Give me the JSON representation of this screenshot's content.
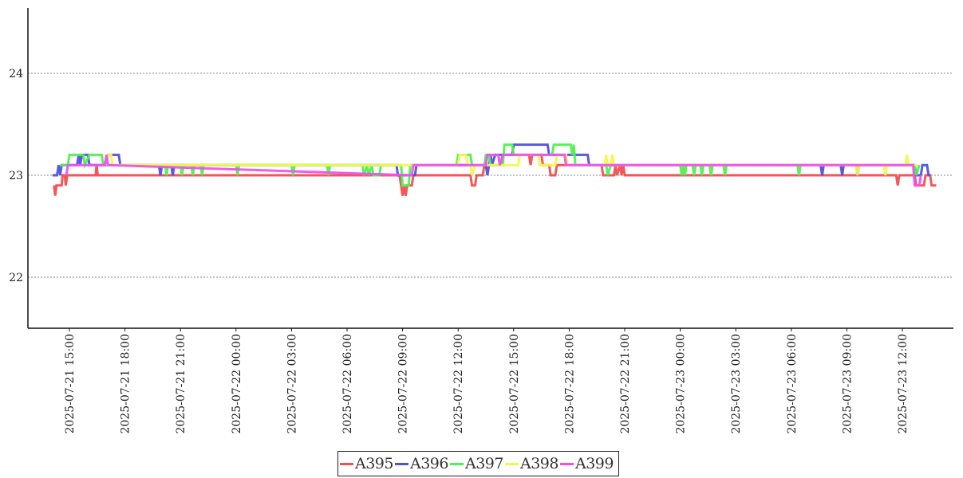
{
  "chart_data": {
    "type": "line",
    "title": "",
    "xlabel": "",
    "ylabel": "",
    "ylim": [
      21.5,
      24.6
    ],
    "y_ticks": [
      22,
      23,
      24
    ],
    "grid": "horizontal dotted",
    "legend_position": "bottom-center",
    "x_ticks": [
      "2025-07-21 15:00",
      "2025-07-21 18:00",
      "2025-07-21 21:00",
      "2025-07-22 00:00",
      "2025-07-22 03:00",
      "2025-07-22 06:00",
      "2025-07-22 09:00",
      "2025-07-22 12:00",
      "2025-07-22 15:00",
      "2025-07-22 18:00",
      "2025-07-22 21:00",
      "2025-07-23 00:00",
      "2025-07-23 03:00",
      "2025-07-23 06:00",
      "2025-07-23 09:00",
      "2025-07-23 12:00"
    ],
    "series": [
      {
        "name": "A395",
        "color": "#f05050",
        "points": [
          [
            "2025-07-21 14:10",
            22.9
          ],
          [
            "2025-07-21 14:14",
            22.8
          ],
          [
            "2025-07-21 14:18",
            22.9
          ],
          [
            "2025-07-21 14:35",
            22.9
          ],
          [
            "2025-07-21 14:38",
            23.0
          ],
          [
            "2025-07-21 14:45",
            23.0
          ],
          [
            "2025-07-21 14:48",
            22.9
          ],
          [
            "2025-07-21 14:53",
            23.0
          ],
          [
            "2025-07-21 16:25",
            23.0
          ],
          [
            "2025-07-21 16:28",
            23.1
          ],
          [
            "2025-07-21 16:32",
            23.0
          ],
          [
            "2025-07-22 08:50",
            23.0
          ],
          [
            "2025-07-22 08:55",
            22.9
          ],
          [
            "2025-07-22 09:00",
            22.8
          ],
          [
            "2025-07-22 09:05",
            22.9
          ],
          [
            "2025-07-22 09:10",
            22.8
          ],
          [
            "2025-07-22 09:15",
            22.9
          ],
          [
            "2025-07-22 09:30",
            22.9
          ],
          [
            "2025-07-22 09:35",
            23.0
          ],
          [
            "2025-07-22 12:40",
            23.0
          ],
          [
            "2025-07-22 12:45",
            22.9
          ],
          [
            "2025-07-22 12:55",
            22.9
          ],
          [
            "2025-07-22 13:00",
            23.0
          ],
          [
            "2025-07-22 13:20",
            23.0
          ],
          [
            "2025-07-22 13:25",
            23.1
          ],
          [
            "2025-07-22 14:20",
            23.1
          ],
          [
            "2025-07-22 14:25",
            23.2
          ],
          [
            "2025-07-22 15:50",
            23.2
          ],
          [
            "2025-07-22 15:55",
            23.1
          ],
          [
            "2025-07-22 16:00",
            23.2
          ],
          [
            "2025-07-22 16:30",
            23.2
          ],
          [
            "2025-07-22 16:35",
            23.1
          ],
          [
            "2025-07-22 16:55",
            23.1
          ],
          [
            "2025-07-22 17:00",
            23.0
          ],
          [
            "2025-07-22 17:15",
            23.0
          ],
          [
            "2025-07-22 17:20",
            23.1
          ],
          [
            "2025-07-22 19:45",
            23.1
          ],
          [
            "2025-07-22 19:50",
            23.0
          ],
          [
            "2025-07-22 20:25",
            23.0
          ],
          [
            "2025-07-22 20:30",
            23.1
          ],
          [
            "2025-07-22 20:35",
            23.0
          ],
          [
            "2025-07-22 20:45",
            23.1
          ],
          [
            "2025-07-22 20:50",
            23.0
          ],
          [
            "2025-07-22 20:55",
            23.1
          ],
          [
            "2025-07-22 21:00",
            23.0
          ],
          [
            "2025-07-23 11:40",
            23.0
          ],
          [
            "2025-07-23 11:45",
            22.9
          ],
          [
            "2025-07-23 11:50",
            23.0
          ],
          [
            "2025-07-23 12:40",
            23.0
          ],
          [
            "2025-07-23 12:45",
            22.9
          ],
          [
            "2025-07-23 13:10",
            22.9
          ],
          [
            "2025-07-23 13:15",
            23.0
          ],
          [
            "2025-07-23 13:30",
            23.0
          ],
          [
            "2025-07-23 13:35",
            22.9
          ],
          [
            "2025-07-23 13:50",
            22.9
          ]
        ]
      },
      {
        "name": "A396",
        "color": "#5050e0",
        "points": [
          [
            "2025-07-21 14:05",
            23.0
          ],
          [
            "2025-07-21 14:20",
            23.0
          ],
          [
            "2025-07-21 14:25",
            23.1
          ],
          [
            "2025-07-21 14:30",
            23.0
          ],
          [
            "2025-07-21 14:35",
            23.1
          ],
          [
            "2025-07-21 15:25",
            23.1
          ],
          [
            "2025-07-21 15:30",
            23.2
          ],
          [
            "2025-07-21 15:35",
            23.1
          ],
          [
            "2025-07-21 15:40",
            23.2
          ],
          [
            "2025-07-21 16:00",
            23.2
          ],
          [
            "2025-07-21 16:05",
            23.1
          ],
          [
            "2025-07-21 17:00",
            23.1
          ],
          [
            "2025-07-21 17:05",
            23.2
          ],
          [
            "2025-07-21 17:40",
            23.2
          ],
          [
            "2025-07-21 17:45",
            23.1
          ],
          [
            "2025-07-21 19:50",
            23.1
          ],
          [
            "2025-07-21 19:55",
            23.0
          ],
          [
            "2025-07-21 20:00",
            23.1
          ],
          [
            "2025-07-21 20:30",
            23.1
          ],
          [
            "2025-07-21 20:35",
            23.0
          ],
          [
            "2025-07-21 20:40",
            23.1
          ],
          [
            "2025-07-22 08:40",
            23.1
          ],
          [
            "2025-07-22 08:45",
            23.0
          ],
          [
            "2025-07-22 09:40",
            23.0
          ],
          [
            "2025-07-22 09:45",
            23.1
          ],
          [
            "2025-07-22 13:30",
            23.1
          ],
          [
            "2025-07-22 13:35",
            23.0
          ],
          [
            "2025-07-22 13:40",
            23.1
          ],
          [
            "2025-07-22 13:45",
            23.2
          ],
          [
            "2025-07-22 13:50",
            23.1
          ],
          [
            "2025-07-22 14:00",
            23.2
          ],
          [
            "2025-07-22 14:55",
            23.2
          ],
          [
            "2025-07-22 15:00",
            23.3
          ],
          [
            "2025-07-22 16:50",
            23.3
          ],
          [
            "2025-07-22 16:55",
            23.2
          ],
          [
            "2025-07-22 19:00",
            23.2
          ],
          [
            "2025-07-22 19:05",
            23.1
          ],
          [
            "2025-07-23 07:35",
            23.1
          ],
          [
            "2025-07-23 07:40",
            23.0
          ],
          [
            "2025-07-23 07:45",
            23.1
          ],
          [
            "2025-07-23 08:40",
            23.1
          ],
          [
            "2025-07-23 08:45",
            23.0
          ],
          [
            "2025-07-23 08:50",
            23.1
          ],
          [
            "2025-07-23 09:30",
            23.1
          ],
          [
            "2025-07-23 09:35",
            23.0
          ],
          [
            "2025-07-23 09:40",
            23.1
          ],
          [
            "2025-07-23 12:40",
            23.1
          ],
          [
            "2025-07-23 12:45",
            23.0
          ],
          [
            "2025-07-23 13:00",
            23.0
          ],
          [
            "2025-07-23 13:05",
            23.1
          ],
          [
            "2025-07-23 13:20",
            23.1
          ],
          [
            "2025-07-23 13:25",
            23.0
          ],
          [
            "2025-07-23 13:30",
            23.0
          ]
        ]
      },
      {
        "name": "A397",
        "color": "#50f050",
        "points": [
          [
            "2025-07-21 14:30",
            23.1
          ],
          [
            "2025-07-21 14:55",
            23.1
          ],
          [
            "2025-07-21 15:00",
            23.2
          ],
          [
            "2025-07-21 15:45",
            23.2
          ],
          [
            "2025-07-21 15:50",
            23.1
          ],
          [
            "2025-07-21 16:05",
            23.2
          ],
          [
            "2025-07-21 16:45",
            23.2
          ],
          [
            "2025-07-21 16:50",
            23.1
          ],
          [
            "2025-07-21 20:10",
            23.1
          ],
          [
            "2025-07-21 20:15",
            23.0
          ],
          [
            "2025-07-21 20:20",
            23.1
          ],
          [
            "2025-07-21 21:00",
            23.1
          ],
          [
            "2025-07-21 21:05",
            23.0
          ],
          [
            "2025-07-21 21:10",
            23.1
          ],
          [
            "2025-07-21 21:35",
            23.1
          ],
          [
            "2025-07-21 21:40",
            23.0
          ],
          [
            "2025-07-21 21:45",
            23.1
          ],
          [
            "2025-07-21 22:05",
            23.1
          ],
          [
            "2025-07-21 22:10",
            23.0
          ],
          [
            "2025-07-21 22:15",
            23.1
          ],
          [
            "2025-07-22 00:00",
            23.1
          ],
          [
            "2025-07-22 00:05",
            23.0
          ],
          [
            "2025-07-22 00:10",
            23.1
          ],
          [
            "2025-07-22 03:00",
            23.1
          ],
          [
            "2025-07-22 03:05",
            23.0
          ],
          [
            "2025-07-22 03:10",
            23.1
          ],
          [
            "2025-07-22 04:55",
            23.1
          ],
          [
            "2025-07-22 05:00",
            23.0
          ],
          [
            "2025-07-22 05:05",
            23.1
          ],
          [
            "2025-07-22 06:50",
            23.1
          ],
          [
            "2025-07-22 06:55",
            23.0
          ],
          [
            "2025-07-22 07:05",
            23.1
          ],
          [
            "2025-07-22 07:10",
            23.0
          ],
          [
            "2025-07-22 07:20",
            23.1
          ],
          [
            "2025-07-22 07:25",
            23.0
          ],
          [
            "2025-07-22 07:45",
            23.0
          ],
          [
            "2025-07-22 07:50",
            23.1
          ],
          [
            "2025-07-22 08:55",
            23.1
          ],
          [
            "2025-07-22 09:00",
            22.9
          ],
          [
            "2025-07-22 09:20",
            22.9
          ],
          [
            "2025-07-22 09:25",
            23.1
          ],
          [
            "2025-07-22 11:55",
            23.1
          ],
          [
            "2025-07-22 12:00",
            23.2
          ],
          [
            "2025-07-22 12:40",
            23.2
          ],
          [
            "2025-07-22 12:45",
            23.1
          ],
          [
            "2025-07-22 13:25",
            23.1
          ],
          [
            "2025-07-22 13:30",
            23.2
          ],
          [
            "2025-07-22 13:40",
            23.2
          ],
          [
            "2025-07-22 13:45",
            23.1
          ],
          [
            "2025-07-22 14:25",
            23.1
          ],
          [
            "2025-07-22 14:30",
            23.3
          ],
          [
            "2025-07-22 14:55",
            23.3
          ],
          [
            "2025-07-22 15:00",
            23.2
          ],
          [
            "2025-07-22 17:05",
            23.2
          ],
          [
            "2025-07-22 17:10",
            23.3
          ],
          [
            "2025-07-22 18:05",
            23.3
          ],
          [
            "2025-07-22 18:10",
            23.2
          ],
          [
            "2025-07-22 18:15",
            23.3
          ],
          [
            "2025-07-22 18:20",
            23.1
          ],
          [
            "2025-07-22 20:00",
            23.1
          ],
          [
            "2025-07-22 20:05",
            23.0
          ],
          [
            "2025-07-22 20:15",
            23.1
          ],
          [
            "2025-07-23 00:00",
            23.1
          ],
          [
            "2025-07-23 00:05",
            23.0
          ],
          [
            "2025-07-23 00:10",
            23.1
          ],
          [
            "2025-07-23 00:15",
            23.0
          ],
          [
            "2025-07-23 00:20",
            23.1
          ],
          [
            "2025-07-23 00:40",
            23.1
          ],
          [
            "2025-07-23 00:45",
            23.0
          ],
          [
            "2025-07-23 00:50",
            23.1
          ],
          [
            "2025-07-23 01:05",
            23.1
          ],
          [
            "2025-07-23 01:10",
            23.0
          ],
          [
            "2025-07-23 01:15",
            23.1
          ],
          [
            "2025-07-23 01:35",
            23.1
          ],
          [
            "2025-07-23 01:40",
            23.0
          ],
          [
            "2025-07-23 01:45",
            23.1
          ],
          [
            "2025-07-23 02:20",
            23.1
          ],
          [
            "2025-07-23 02:25",
            23.0
          ],
          [
            "2025-07-23 02:30",
            23.1
          ],
          [
            "2025-07-23 06:20",
            23.1
          ],
          [
            "2025-07-23 06:25",
            23.0
          ],
          [
            "2025-07-23 06:30",
            23.1
          ],
          [
            "2025-07-23 12:40",
            23.1
          ],
          [
            "2025-07-23 12:45",
            23.0
          ],
          [
            "2025-07-23 12:55",
            23.1
          ]
        ]
      },
      {
        "name": "A398",
        "color": "#f5f550",
        "points": [
          [
            "2025-07-21 17:00",
            23.1
          ],
          [
            "2025-07-21 17:05",
            23.2
          ],
          [
            "2025-07-21 17:15",
            23.2
          ],
          [
            "2025-07-21 17:20",
            23.1
          ],
          [
            "2025-07-22 12:00",
            23.1
          ],
          [
            "2025-07-22 12:05",
            23.2
          ],
          [
            "2025-07-22 12:25",
            23.2
          ],
          [
            "2025-07-22 12:30",
            23.1
          ],
          [
            "2025-07-22 12:40",
            23.1
          ],
          [
            "2025-07-22 12:45",
            23.0
          ],
          [
            "2025-07-22 12:55",
            23.1
          ],
          [
            "2025-07-22 15:15",
            23.1
          ],
          [
            "2025-07-22 15:20",
            23.2
          ],
          [
            "2025-07-22 16:20",
            23.2
          ],
          [
            "2025-07-22 16:25",
            23.1
          ],
          [
            "2025-07-22 17:15",
            23.1
          ],
          [
            "2025-07-22 17:20",
            23.2
          ],
          [
            "2025-07-22 17:50",
            23.2
          ],
          [
            "2025-07-22 17:55",
            23.1
          ],
          [
            "2025-07-22 19:55",
            23.1
          ],
          [
            "2025-07-22 20:00",
            23.2
          ],
          [
            "2025-07-22 20:05",
            23.1
          ],
          [
            "2025-07-22 20:15",
            23.1
          ],
          [
            "2025-07-22 20:20",
            23.2
          ],
          [
            "2025-07-22 20:25",
            23.1
          ],
          [
            "2025-07-23 07:15",
            23.1
          ],
          [
            "2025-07-23 07:20",
            23.1
          ],
          [
            "2025-07-23 08:30",
            23.1
          ],
          [
            "2025-07-23 08:35",
            23.1
          ],
          [
            "2025-07-23 09:30",
            23.1
          ],
          [
            "2025-07-23 09:35",
            23.0
          ],
          [
            "2025-07-23 09:40",
            23.1
          ],
          [
            "2025-07-23 11:00",
            23.1
          ],
          [
            "2025-07-23 11:05",
            23.0
          ],
          [
            "2025-07-23 11:10",
            23.1
          ],
          [
            "2025-07-23 12:10",
            23.1
          ],
          [
            "2025-07-23 12:15",
            23.2
          ],
          [
            "2025-07-23 12:20",
            23.1
          ],
          [
            "2025-07-23 12:50",
            23.1
          ]
        ]
      },
      {
        "name": "A399",
        "color": "#f050f0",
        "points": [
          [
            "2025-07-21 14:50",
            23.0
          ],
          [
            "2025-07-21 14:55",
            23.1
          ],
          [
            "2025-07-21 16:55",
            23.1
          ],
          [
            "2025-07-21 17:00",
            23.2
          ],
          [
            "2025-07-21 17:05",
            23.1
          ],
          [
            "2025-07-22 09:30",
            23.0
          ],
          [
            "2025-07-22 09:35",
            23.1
          ],
          [
            "2025-07-22 13:30",
            23.1
          ],
          [
            "2025-07-22 13:35",
            23.2
          ],
          [
            "2025-07-22 14:10",
            23.2
          ],
          [
            "2025-07-22 14:15",
            23.1
          ],
          [
            "2025-07-22 14:25",
            23.2
          ],
          [
            "2025-07-22 17:45",
            23.2
          ],
          [
            "2025-07-22 17:50",
            23.1
          ],
          [
            "2025-07-23 12:35",
            23.1
          ],
          [
            "2025-07-23 12:40",
            22.9
          ],
          [
            "2025-07-23 12:55",
            22.9
          ],
          [
            "2025-07-23 13:00",
            23.0
          ]
        ]
      }
    ]
  }
}
